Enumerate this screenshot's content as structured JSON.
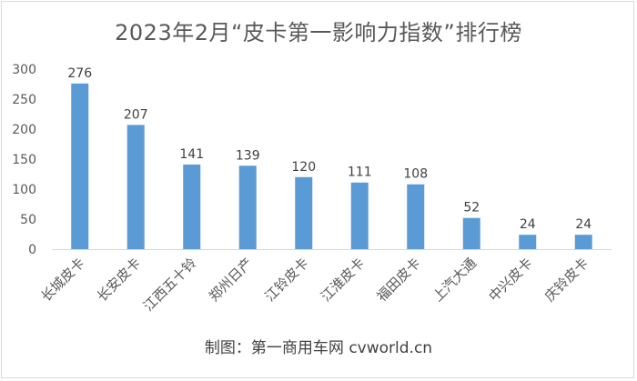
{
  "chart_data": {
    "type": "bar",
    "title": "2023年2月“皮卡第一影响力指数”排行榜",
    "categories": [
      "长城皮卡",
      "长安皮卡",
      "江西五十铃",
      "郑州日产",
      "江铃皮卡",
      "江淮皮卡",
      "福田皮卡",
      "上汽大通",
      "中兴皮卡",
      "庆铃皮卡"
    ],
    "values": [
      276,
      207,
      141,
      139,
      120,
      111,
      108,
      52,
      24,
      24
    ],
    "ylim": [
      0,
      300
    ],
    "yticks": [
      0,
      50,
      100,
      150,
      200,
      250,
      300
    ],
    "grid": false,
    "legend": "none",
    "bar_color": "#5b9bd5"
  },
  "credit": "制图：第一商用车网 cvworld.cn"
}
